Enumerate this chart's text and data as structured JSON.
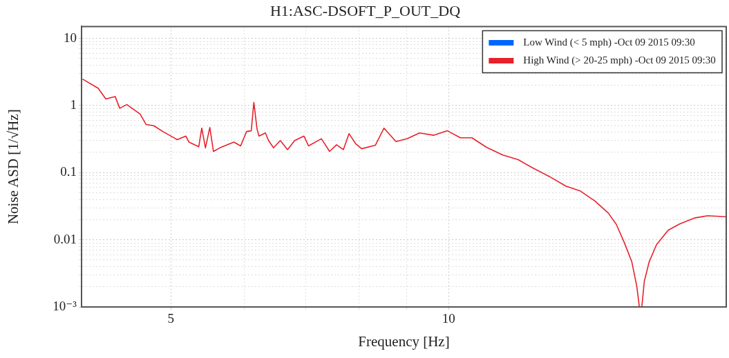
{
  "chart_data": {
    "type": "line",
    "title": "H1:ASC-DSOFT_P_OUT_DQ",
    "xlabel": "Frequency [Hz]",
    "ylabel": "Noise ASD [1/√Hz]",
    "log": "xy",
    "grid": true,
    "legend": "top right",
    "xlim": [
      4,
      20
    ],
    "ylim": [
      0.001,
      15
    ],
    "xticks": [
      5,
      {
        "value": 6,
        "label": null
      },
      {
        "value": 7,
        "label": null
      },
      {
        "value": 8,
        "label": null
      },
      {
        "value": 9,
        "label": null
      },
      10
    ],
    "yticks": [
      {
        "value": 0.001,
        "label": "10⁻³"
      },
      {
        "value": 0.002,
        "label": null
      },
      {
        "value": 0.003,
        "label": null
      },
      {
        "value": 0.004,
        "label": null
      },
      {
        "value": 0.005,
        "label": null
      },
      {
        "value": 0.006,
        "label": null
      },
      {
        "value": 0.007,
        "label": null
      },
      {
        "value": 0.008,
        "label": null
      },
      {
        "value": 0.009,
        "label": null
      },
      0.01,
      {
        "value": 0.02,
        "label": null
      },
      {
        "value": 0.03,
        "label": null
      },
      {
        "value": 0.04,
        "label": null
      },
      {
        "value": 0.05,
        "label": null
      },
      {
        "value": 0.06,
        "label": null
      },
      {
        "value": 0.07,
        "label": null
      },
      {
        "value": 0.08,
        "label": null
      },
      {
        "value": 0.09,
        "label": null
      },
      0.1,
      {
        "value": 0.2,
        "label": null
      },
      {
        "value": 0.3,
        "label": null
      },
      {
        "value": 0.4,
        "label": null
      },
      {
        "value": 0.5,
        "label": null
      },
      {
        "value": 0.6,
        "label": null
      },
      {
        "value": 0.7,
        "label": null
      },
      {
        "value": 0.8,
        "label": null
      },
      {
        "value": 0.9,
        "label": null
      },
      1,
      {
        "value": 2,
        "label": null
      },
      {
        "value": 3,
        "label": null
      },
      {
        "value": 4,
        "label": null
      },
      {
        "value": 5,
        "label": null
      },
      {
        "value": 6,
        "label": null
      },
      {
        "value": 7,
        "label": null
      },
      {
        "value": 8,
        "label": null
      },
      {
        "value": 9,
        "label": null
      },
      10
    ],
    "x": [
      4.01,
      4.17,
      4.25,
      4.35,
      4.4,
      4.48,
      4.63,
      4.7,
      4.79,
      4.9,
      5.08,
      5.19,
      5.23,
      5.36,
      5.4,
      5.45,
      5.51,
      5.56,
      5.65,
      5.85,
      5.95,
      6.04,
      6.11,
      6.15,
      6.2,
      6.23,
      6.33,
      6.38,
      6.46,
      6.57,
      6.69,
      6.81,
      6.97,
      7.05,
      7.28,
      7.43,
      7.56,
      7.69,
      7.8,
      7.93,
      8.05,
      8.33,
      8.51,
      8.77,
      9.02,
      9.3,
      9.64,
      9.97,
      10.3,
      10.6,
      11,
      11.45,
      11.9,
      12.3,
      12.85,
      13.4,
      13.9,
      14.4,
      14.9,
      15.2,
      15.5,
      15.8,
      16,
      16.1,
      16.2,
      16.3,
      16.5,
      16.8,
      17.3,
      17.8,
      18.5,
      19.1,
      20
    ],
    "series": [
      {
        "name": "Low Wind (< 5 mph) -Oct 09 2015 09:30",
        "color": "#0066ff",
        "values": [
          null,
          null,
          null,
          null,
          null,
          null,
          null,
          null,
          null,
          null,
          null,
          null,
          null,
          null,
          null,
          null,
          null,
          null,
          null,
          null,
          null,
          null,
          null,
          null,
          null,
          null,
          null,
          null,
          null,
          null,
          null,
          null,
          null,
          null,
          null,
          null,
          null,
          null,
          null,
          null,
          null,
          null,
          null,
          null,
          null,
          null,
          null,
          null,
          null,
          null,
          null,
          null,
          null,
          null,
          null,
          null,
          null,
          null,
          null,
          null,
          null,
          null,
          null,
          null,
          null,
          null,
          null,
          null,
          null,
          null,
          null,
          null,
          null
        ]
      },
      {
        "name": "High Wind (> 20-25 mph) -Oct 09 2015 09:30",
        "color": "#e8202a",
        "values": [
          2.47,
          1.8,
          1.25,
          1.36,
          0.91,
          1.03,
          0.745,
          0.52,
          0.5,
          0.41,
          0.31,
          0.35,
          0.285,
          0.243,
          0.46,
          0.234,
          0.47,
          0.207,
          0.234,
          0.285,
          0.25,
          0.41,
          0.42,
          1.11,
          0.44,
          0.35,
          0.39,
          0.3,
          0.234,
          0.3,
          0.22,
          0.3,
          0.35,
          0.25,
          0.32,
          0.207,
          0.26,
          0.22,
          0.38,
          0.27,
          0.227,
          0.256,
          0.46,
          0.29,
          0.32,
          0.39,
          0.36,
          0.42,
          0.33,
          0.33,
          0.237,
          0.183,
          0.156,
          0.12,
          0.088,
          0.063,
          0.053,
          0.038,
          0.025,
          0.017,
          0.0092,
          0.0047,
          0.002,
          0.001,
          0.001,
          0.0024,
          0.0047,
          0.0084,
          0.0139,
          0.0172,
          0.0212,
          0.0228,
          0.022
        ]
      }
    ]
  }
}
